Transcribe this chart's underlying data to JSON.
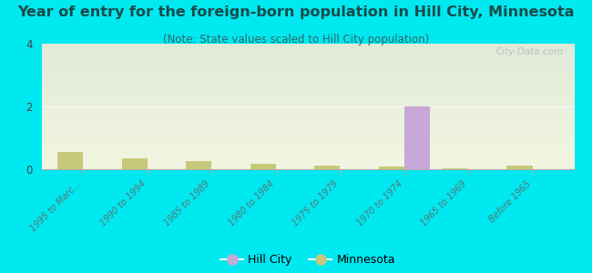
{
  "title": "Year of entry for the foreign-born population in Hill City, Minnesota",
  "subtitle": "(Note: State values scaled to Hill City population)",
  "categories": [
    "1995 to Marc...",
    "1990 to 1994",
    "1985 to 1989",
    "1980 to 1984",
    "1975 to 1979",
    "1970 to 1974",
    "1965 to 1969",
    "Before 1965"
  ],
  "hill_city_values": [
    0,
    0,
    0,
    0,
    0,
    2,
    0,
    0
  ],
  "minnesota_values": [
    0.55,
    0.35,
    0.25,
    0.18,
    0.12,
    0.08,
    0.03,
    0.12
  ],
  "hill_city_color": "#c8a8d8",
  "minnesota_color": "#c8c87a",
  "background_color": "#00e8f0",
  "ylim": [
    0,
    4
  ],
  "yticks": [
    0,
    2,
    4
  ],
  "bar_width": 0.4,
  "watermark": "City-Data.com",
  "title_fontsize": 11.5,
  "subtitle_fontsize": 8.5,
  "title_color": "#1a4a4a",
  "subtitle_color": "#336666"
}
